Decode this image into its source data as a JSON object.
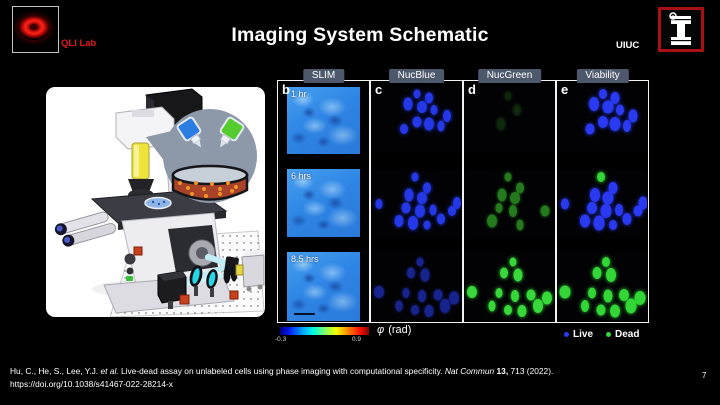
{
  "slide": {
    "title": "Imaging System Schematic",
    "page_number": "7",
    "header": {
      "lab_name": "QLI Lab",
      "university": "UIUC"
    },
    "citation": {
      "r1": "Hu, C., He, S., Lee, Y.J. ",
      "r2": "et al.",
      "r3": " Live-dead assay on unlabeled cells using phase imaging with computational specificity. ",
      "r4": "Nat Commun",
      "r5": " 13,",
      "r6": " 713 (2022).",
      "line2": "https://doi.org/10.1038/s41467-022-28214-x"
    }
  },
  "figure": {
    "band_tops": [
      6,
      88,
      171
    ],
    "band_heights": [
      67,
      68,
      69
    ],
    "columns": [
      {
        "letter": "b",
        "header": "SLIM",
        "type": "slim",
        "panels": [
          {
            "time": "1 hr"
          },
          {
            "time": "6 hrs"
          },
          {
            "time": "8.5 hrs",
            "scalebar": true
          }
        ]
      },
      {
        "letter": "c",
        "header": "NucBlue",
        "type": "fluo",
        "panels": [
          {
            "set": "t1",
            "color": "#2438e8",
            "opacity": 1,
            "glow": 4
          },
          {
            "set": "t2",
            "color": "#2438e8",
            "opacity": 1,
            "glow": 4
          },
          {
            "set": "t3",
            "color": "#1d2db0",
            "opacity": 0.8,
            "glow": 3
          }
        ]
      },
      {
        "letter": "d",
        "header": "NucGreen",
        "type": "fluo",
        "panels": [
          {
            "set": "g1",
            "color": "#1e5217",
            "opacity": 0.5,
            "glow": 2,
            "blur": true
          },
          {
            "set": "g2",
            "color": "#2a8f22",
            "opacity": 0.85,
            "glow": 3
          },
          {
            "set": "t3",
            "color": "#38d83a",
            "opacity": 1,
            "glow": 4
          }
        ]
      },
      {
        "letter": "e",
        "header": "Viability",
        "type": "fluo",
        "big": true,
        "panels": [
          {
            "set": "t1",
            "color": "#2a3af2",
            "opacity": 1,
            "glow": 4
          },
          {
            "set": "t2",
            "color": "#2a3af2",
            "opacity": 1,
            "glow": 4,
            "greens": [
              0
            ]
          },
          {
            "set": "t3",
            "color": "#32d636",
            "opacity": 1,
            "glow": 4
          }
        ]
      }
    ],
    "blob_sets": {
      "t1": [
        [
          50,
          10
        ],
        [
          64,
          16
        ],
        [
          40,
          26
        ],
        [
          56,
          30
        ],
        [
          70,
          34
        ],
        [
          84,
          44
        ],
        [
          50,
          52
        ],
        [
          64,
          55
        ],
        [
          78,
          58
        ],
        [
          36,
          62
        ]
      ],
      "t2": [
        [
          48,
          12
        ],
        [
          62,
          28
        ],
        [
          42,
          38
        ],
        [
          56,
          42
        ],
        [
          8,
          52
        ],
        [
          95,
          50
        ],
        [
          38,
          58
        ],
        [
          54,
          62
        ],
        [
          68,
          60
        ],
        [
          90,
          62
        ],
        [
          30,
          76
        ],
        [
          46,
          80
        ],
        [
          62,
          82
        ],
        [
          78,
          74
        ]
      ],
      "t3": [
        [
          54,
          14
        ],
        [
          44,
          30
        ],
        [
          60,
          34
        ],
        [
          8,
          58
        ],
        [
          38,
          60
        ],
        [
          56,
          64
        ],
        [
          74,
          62
        ],
        [
          92,
          66
        ],
        [
          30,
          78
        ],
        [
          48,
          84
        ],
        [
          64,
          86
        ],
        [
          82,
          78
        ]
      ],
      "g1": [
        [
          48,
          14
        ],
        [
          58,
          34
        ],
        [
          40,
          55
        ]
      ],
      "g2": [
        [
          48,
          12
        ],
        [
          62,
          28
        ],
        [
          42,
          38
        ],
        [
          56,
          42
        ],
        [
          38,
          58
        ],
        [
          54,
          62
        ],
        [
          90,
          62
        ],
        [
          30,
          76
        ],
        [
          62,
          82
        ]
      ]
    },
    "dead_color": "#32d636",
    "colorbar": {
      "min": "-0.3",
      "max": "0.9",
      "phi": "φ",
      "units": "(rad)"
    },
    "legend": [
      {
        "label": "Live",
        "color": "#2a3af2"
      },
      {
        "label": "Dead",
        "color": "#32d636"
      }
    ]
  },
  "colors": {
    "accent_red": "#e21717",
    "illinois_border": "#a81016",
    "chip_bg": "#4e586c",
    "slim_blue": "#2e84e4"
  }
}
